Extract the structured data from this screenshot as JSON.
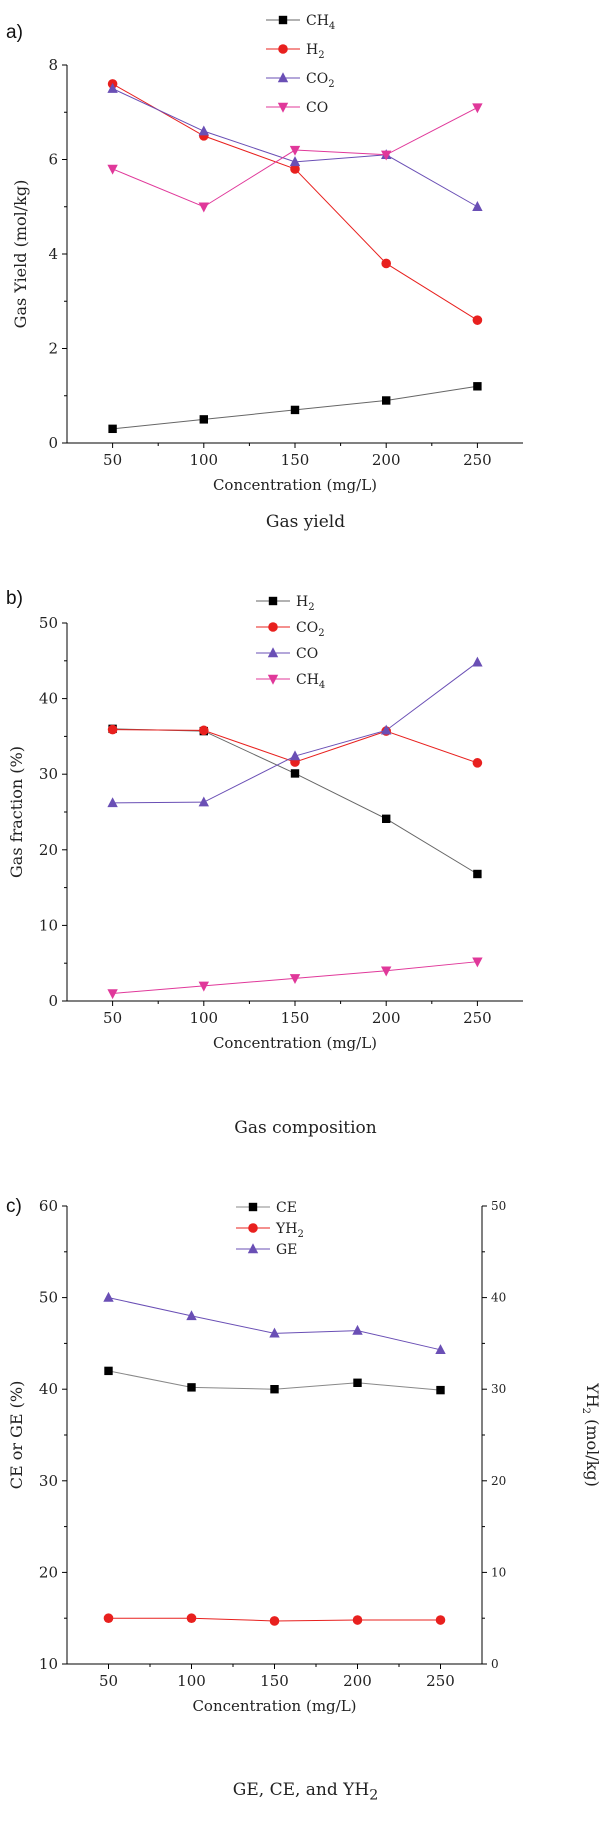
{
  "charts": [
    {
      "panel_label": "a)",
      "caption": "Gas yield",
      "chart_data": {
        "type": "line",
        "xlabel": "Concentration (mg/L)",
        "ylabel": "Gas Yield (mol/kg)",
        "x": [
          50,
          100,
          150,
          200,
          250
        ],
        "x_ticks": [
          "50",
          "100",
          "150",
          "200",
          "250"
        ],
        "xlim": [
          25,
          275
        ],
        "ylim": [
          0,
          8
        ],
        "y_ticks": [
          "0",
          "2",
          "4",
          "6",
          "8"
        ],
        "legend_position": "top",
        "series": [
          {
            "name": "CH",
            "sub": "4",
            "marker": "square",
            "color": "#000000",
            "line_color": "#666666",
            "values": [
              0.3,
              0.5,
              0.7,
              0.9,
              1.2
            ]
          },
          {
            "name": "H",
            "sub": "2",
            "marker": "circle",
            "color": "#e8201e",
            "line_color": "#e8201e",
            "values": [
              7.6,
              6.5,
              5.8,
              3.8,
              2.6
            ]
          },
          {
            "name": "CO",
            "sub": "2",
            "marker": "triangle-up",
            "color": "#6a4fb5",
            "line_color": "#6a4fb5",
            "values": [
              7.5,
              6.6,
              5.95,
              6.1,
              5.0
            ]
          },
          {
            "name": "CO",
            "sub": "",
            "marker": "triangle-down",
            "color": "#e0389a",
            "line_color": "#e0389a",
            "values": [
              5.8,
              5.0,
              6.2,
              6.1,
              7.1
            ]
          }
        ]
      }
    },
    {
      "panel_label": "b)",
      "caption": "Gas composition",
      "chart_data": {
        "type": "line",
        "xlabel": "Concentration (mg/L)",
        "ylabel": "Gas fraction (%)",
        "x": [
          50,
          100,
          150,
          200,
          250
        ],
        "x_ticks": [
          "50",
          "100",
          "150",
          "200",
          "250"
        ],
        "xlim": [
          25,
          275
        ],
        "ylim": [
          0,
          50
        ],
        "y_ticks": [
          "0",
          "10",
          "20",
          "30",
          "40",
          "50"
        ],
        "legend_position": "top",
        "series": [
          {
            "name": "H",
            "sub": "2",
            "marker": "square",
            "color": "#000000",
            "line_color": "#666666",
            "values": [
              36.0,
              35.7,
              30.1,
              24.1,
              16.8
            ]
          },
          {
            "name": "CO",
            "sub": "2",
            "marker": "circle",
            "color": "#e8201e",
            "line_color": "#e8201e",
            "values": [
              35.9,
              35.8,
              31.6,
              35.7,
              31.5
            ]
          },
          {
            "name": "CO",
            "sub": "",
            "marker": "triangle-up",
            "color": "#6a4fb5",
            "line_color": "#6a4fb5",
            "values": [
              26.2,
              26.3,
              32.4,
              35.8,
              44.8
            ]
          },
          {
            "name": "CH",
            "sub": "4",
            "marker": "triangle-down",
            "color": "#e0389a",
            "line_color": "#e0389a",
            "values": [
              1.0,
              2.0,
              3.0,
              4.0,
              5.2
            ]
          }
        ]
      }
    },
    {
      "panel_label": "c)",
      "caption": "GE, CE, and YH",
      "caption_sub": "2",
      "chart_data": {
        "type": "line",
        "xlabel": "Concentration (mg/L)",
        "ylabel": "CE or GE (%)",
        "ylabel_right": "YH",
        "ylabel_right_sub": "2",
        "ylabel_right_suffix": " (mol/kg)",
        "x": [
          50,
          100,
          150,
          200,
          250
        ],
        "x_ticks": [
          "50",
          "100",
          "150",
          "200",
          "250"
        ],
        "xlim": [
          25,
          275
        ],
        "ylim": [
          10,
          60
        ],
        "y_ticks": [
          "10",
          "20",
          "30",
          "40",
          "50",
          "60"
        ],
        "ylim_right": [
          0,
          50
        ],
        "y_ticks_right": [
          "0",
          "10",
          "20",
          "30",
          "40",
          "50"
        ],
        "legend_position": "top",
        "series": [
          {
            "name": "CE",
            "sub": "",
            "marker": "square",
            "color": "#000000",
            "line_color": "#888888",
            "axis": "left",
            "values": [
              42.0,
              40.2,
              40.0,
              40.7,
              39.9
            ]
          },
          {
            "name": "YH",
            "sub": "2",
            "marker": "circle",
            "color": "#e8201e",
            "line_color": "#e8201e",
            "axis": "right",
            "values": [
              5.0,
              5.0,
              4.7,
              4.8,
              4.8
            ]
          },
          {
            "name": "GE",
            "sub": "",
            "marker": "triangle-up",
            "color": "#6a4fb5",
            "line_color": "#6a4fb5",
            "axis": "left",
            "values": [
              50.0,
              48.0,
              46.1,
              46.4,
              44.3
            ]
          }
        ]
      }
    }
  ]
}
